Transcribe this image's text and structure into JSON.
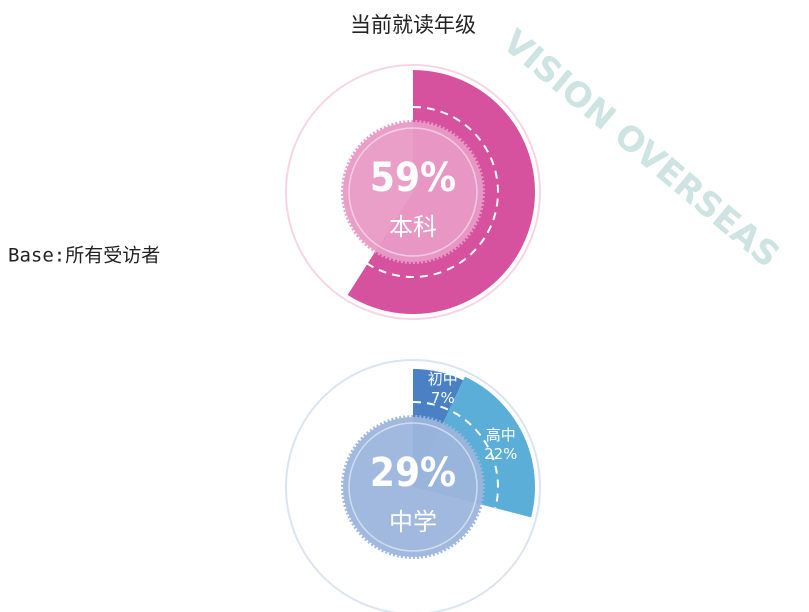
{
  "title": "当前就读年级",
  "base_note": "Base:所有受访者",
  "watermark": "VISION OVERSEAS",
  "chart_data": [
    {
      "type": "radial",
      "center_name": "本科",
      "categories": [
        "本科"
      ],
      "values": [
        59
      ],
      "value_labels": [
        "59%"
      ],
      "colors": [
        "#d6529e"
      ],
      "disc_color": "#e99ac6",
      "ring_color": "#f6d5e7"
    },
    {
      "type": "radial",
      "center_name": "中学",
      "total": 29,
      "total_label": "29%",
      "categories": [
        "初中",
        "高中"
      ],
      "values": [
        7,
        22
      ],
      "value_labels": [
        "7%",
        "22%"
      ],
      "colors": [
        "#4a80c4",
        "#5aaed8"
      ],
      "disc_color": "#9db6dd",
      "ring_color": "#dbe5f1"
    }
  ]
}
